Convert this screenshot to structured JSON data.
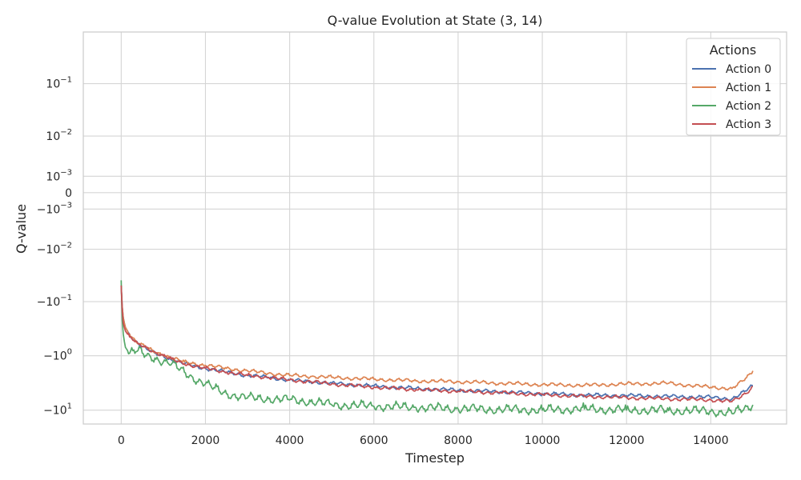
{
  "chart_data": {
    "type": "line",
    "title": "Q-value Evolution at State (3, 14)",
    "xlabel": "Timestep",
    "ylabel": "Q-value",
    "xlim": [
      -900,
      15800
    ],
    "xticks": [
      0,
      2000,
      4000,
      6000,
      8000,
      10000,
      12000,
      14000
    ],
    "xtick_labels": [
      "0",
      "2000",
      "4000",
      "6000",
      "8000",
      "10000",
      "12000",
      "14000"
    ],
    "yscale": "symlog",
    "linthresh": 0.001,
    "ylim": [
      -18,
      0.9
    ],
    "yticks": [
      0.1,
      0.01,
      0.001,
      0,
      -0.001,
      -0.01,
      -0.1,
      -1,
      -10
    ],
    "ytick_labels": [
      {
        "base": "10",
        "exp": "−1"
      },
      {
        "base": "10",
        "exp": "−2"
      },
      {
        "base": "10",
        "exp": "−3"
      },
      {
        "base": "0",
        "exp": ""
      },
      {
        "base": "−10",
        "exp": "−3"
      },
      {
        "base": "−10",
        "exp": "−2"
      },
      {
        "base": "−10",
        "exp": "−1"
      },
      {
        "base": "−10",
        "exp": "0"
      },
      {
        "base": "−10",
        "exp": "1"
      }
    ],
    "grid": true,
    "legend": {
      "title": "Actions",
      "position": "top-right"
    },
    "series": [
      {
        "name": "Action 0",
        "color": "#4C72B0",
        "x": [
          0,
          50,
          100,
          200,
          400,
          600,
          800,
          1000,
          1200,
          1500,
          2000,
          2500,
          3000,
          3500,
          4000,
          4500,
          5000,
          6000,
          7000,
          8000,
          9000,
          10000,
          11000,
          12000,
          13000,
          14000,
          14500,
          15000
        ],
        "y": [
          -0.05,
          -0.2,
          -0.3,
          -0.4,
          -0.6,
          -0.75,
          -0.9,
          -1.0,
          -1.2,
          -1.4,
          -1.7,
          -2.0,
          -2.3,
          -2.5,
          -2.8,
          -3.0,
          -3.2,
          -3.6,
          -4.0,
          -4.3,
          -4.6,
          -5.0,
          -5.3,
          -5.4,
          -5.6,
          -5.8,
          -6.2,
          -3.5
        ]
      },
      {
        "name": "Action 1",
        "color": "#DD8452",
        "x": [
          0,
          50,
          100,
          200,
          400,
          600,
          800,
          1000,
          1200,
          1500,
          2000,
          2500,
          3000,
          3500,
          4000,
          4500,
          5000,
          6000,
          7000,
          8000,
          9000,
          10000,
          11000,
          12000,
          13000,
          14000,
          14500,
          15000
        ],
        "y": [
          -0.05,
          -0.2,
          -0.3,
          -0.4,
          -0.6,
          -0.7,
          -0.85,
          -0.95,
          -1.1,
          -1.3,
          -1.5,
          -1.7,
          -1.9,
          -2.1,
          -2.3,
          -2.4,
          -2.5,
          -2.7,
          -2.9,
          -3.0,
          -3.2,
          -3.4,
          -3.5,
          -3.3,
          -3.2,
          -3.8,
          -4.0,
          -1.9
        ]
      },
      {
        "name": "Action 2",
        "color": "#55A868",
        "x": [
          0,
          50,
          100,
          200,
          400,
          600,
          800,
          1000,
          1200,
          1500,
          2000,
          2500,
          3000,
          3500,
          4000,
          4500,
          5000,
          6000,
          7000,
          8000,
          9000,
          10000,
          11000,
          12000,
          13000,
          14000,
          14500,
          15000
        ],
        "y": [
          -0.04,
          -0.4,
          -0.7,
          -0.9,
          -0.8,
          -1.0,
          -1.1,
          -1.3,
          -1.4,
          -2.0,
          -3.3,
          -5.0,
          -6.0,
          -6.2,
          -6.5,
          -7.0,
          -8.0,
          -8.5,
          -9.0,
          -9.5,
          -9.8,
          -10.0,
          -9.5,
          -10.0,
          -10.2,
          -10.5,
          -11.5,
          -8.0
        ]
      },
      {
        "name": "Action 3",
        "color": "#C44E52",
        "x": [
          0,
          50,
          100,
          200,
          400,
          600,
          800,
          1000,
          1200,
          1500,
          2000,
          2500,
          3000,
          3500,
          4000,
          4500,
          5000,
          6000,
          7000,
          8000,
          9000,
          10000,
          11000,
          12000,
          13000,
          14000,
          14500,
          15000
        ],
        "y": [
          -0.05,
          -0.25,
          -0.35,
          -0.45,
          -0.6,
          -0.7,
          -0.85,
          -1.0,
          -1.15,
          -1.4,
          -1.7,
          -2.0,
          -2.3,
          -2.5,
          -2.8,
          -3.0,
          -3.3,
          -3.8,
          -4.2,
          -4.5,
          -4.8,
          -5.2,
          -5.6,
          -5.9,
          -6.2,
          -6.5,
          -7.0,
          -3.7
        ]
      }
    ]
  }
}
